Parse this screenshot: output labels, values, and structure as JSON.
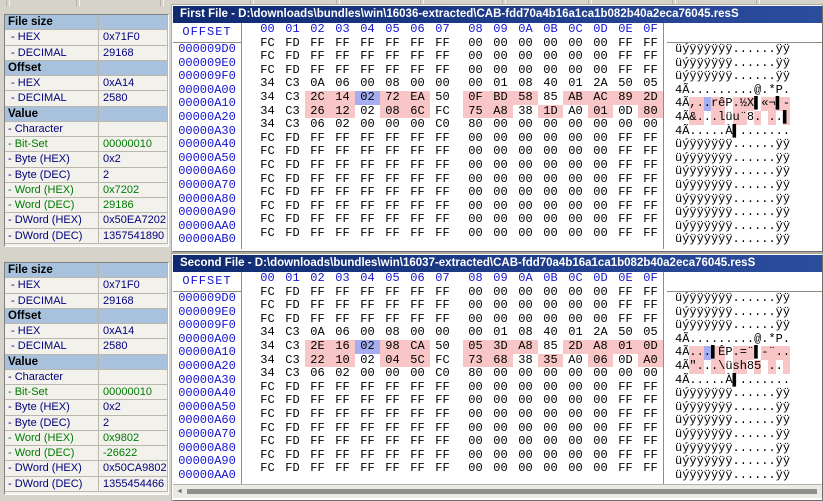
{
  "colors": {
    "navy": "#00007d",
    "green": "#007b00",
    "blue": "#1414d2",
    "diff_highlight": "#f8c6c6",
    "selection_highlight": "#a6aef2",
    "header_steel_blue": "#a8c2dd",
    "caption_dark": "#0f2a70",
    "caption_light": "#2c4d9e"
  },
  "left_panels": [
    {
      "name": "first-file-info",
      "rows": [
        {
          "h": "File size"
        },
        {
          "l": " - HEX",
          "v": "0x71F0",
          "c": "b"
        },
        {
          "l": " - DECIMAL",
          "v": "29168",
          "c": "b"
        },
        {
          "h": "Offset"
        },
        {
          "l": " - HEX",
          "v": "0xA14",
          "c": "b"
        },
        {
          "l": " - DECIMAL",
          "v": "2580",
          "c": "b"
        },
        {
          "h": "Value"
        },
        {
          "l": "- Character",
          "v": "",
          "c": "b"
        },
        {
          "l": "- Bit-Set",
          "v": "00000010",
          "c": "g"
        },
        {
          "l": "- Byte (HEX)",
          "v": "0x2",
          "c": "b"
        },
        {
          "l": "- Byte (DEC)",
          "v": "2",
          "c": "b"
        },
        {
          "l": "- Word (HEX)",
          "v": "0x7202",
          "c": "g"
        },
        {
          "l": "- Word (DEC)",
          "v": "29186",
          "c": "g"
        },
        {
          "l": "- DWord (HEX)",
          "v": "0x50EA7202",
          "c": "b"
        },
        {
          "l": "- DWord (DEC)",
          "v": "1357541890",
          "c": "b"
        }
      ]
    },
    {
      "name": "second-file-info",
      "rows": [
        {
          "h": "File size"
        },
        {
          "l": " - HEX",
          "v": "0x71F0",
          "c": "b"
        },
        {
          "l": " - DECIMAL",
          "v": "29168",
          "c": "b"
        },
        {
          "h": "Offset"
        },
        {
          "l": " - HEX",
          "v": "0xA14",
          "c": "b"
        },
        {
          "l": " - DECIMAL",
          "v": "2580",
          "c": "b"
        },
        {
          "h": "Value"
        },
        {
          "l": "- Character",
          "v": "",
          "c": "b"
        },
        {
          "l": "- Bit-Set",
          "v": "00000010",
          "c": "g"
        },
        {
          "l": "- Byte (HEX)",
          "v": "0x2",
          "c": "b"
        },
        {
          "l": "- Byte (DEC)",
          "v": "2",
          "c": "b"
        },
        {
          "l": "- Word (HEX)",
          "v": "0x9802",
          "c": "g"
        },
        {
          "l": "- Word (DEC)",
          "v": "-26622",
          "c": "g"
        },
        {
          "l": "- DWord (HEX)",
          "v": "0x50CA9802",
          "c": "b"
        },
        {
          "l": "- DWord (DEC)",
          "v": "1355454466",
          "c": "b"
        }
      ]
    }
  ],
  "hex_panes": [
    {
      "title": "First File - D:\\downloads\\bundles\\win\\16036-extracted\\CAB-fdd70a4b16a1ca1b082b40a2eca76045.resS",
      "offset_header": "OFFSET",
      "byte_headers": [
        "00",
        "01",
        "02",
        "03",
        "04",
        "05",
        "06",
        "07",
        "08",
        "09",
        "0A",
        "0B",
        "0C",
        "0D",
        "0E",
        "0F"
      ],
      "rows": [
        {
          "offset": "000009D0",
          "bytes": [
            "FC",
            "FD",
            "FF",
            "FF",
            "FF",
            "FF",
            "FF",
            "FF",
            "00",
            "00",
            "00",
            "00",
            "00",
            "00",
            "FF",
            "FF"
          ],
          "ascii": "üýÿÿÿÿÿÿ......ÿÿ",
          "hl": "................"
        },
        {
          "offset": "000009E0",
          "bytes": [
            "FC",
            "FD",
            "FF",
            "FF",
            "FF",
            "FF",
            "FF",
            "FF",
            "00",
            "00",
            "00",
            "00",
            "00",
            "00",
            "FF",
            "FF"
          ],
          "ascii": "üýÿÿÿÿÿÿ......ÿÿ",
          "hl": "................"
        },
        {
          "offset": "000009F0",
          "bytes": [
            "FC",
            "FD",
            "FF",
            "FF",
            "FF",
            "FF",
            "FF",
            "FF",
            "00",
            "00",
            "00",
            "00",
            "00",
            "00",
            "FF",
            "FF"
          ],
          "ascii": "üýÿÿÿÿÿÿ......ÿÿ",
          "hl": "................"
        },
        {
          "offset": "00000A00",
          "bytes": [
            "34",
            "C3",
            "0A",
            "06",
            "00",
            "08",
            "00",
            "00",
            "00",
            "01",
            "08",
            "40",
            "01",
            "2A",
            "50",
            "05"
          ],
          "ascii": "4Ã.........@.*P.",
          "hl": "................"
        },
        {
          "offset": "00000A10",
          "bytes": [
            "34",
            "C3",
            "2C",
            "14",
            "02",
            "72",
            "EA",
            "50",
            "0F",
            "BD",
            "58",
            "85",
            "AB",
            "AC",
            "89",
            "2D"
          ],
          "ascii": "4Ã,..rêP.½X▌«¬▌-",
          "hl": "..ddsdd.ddd.dddd"
        },
        {
          "offset": "00000A20",
          "bytes": [
            "34",
            "C3",
            "26",
            "12",
            "02",
            "08",
            "6C",
            "FC",
            "75",
            "A8",
            "38",
            "1D",
            "A0",
            "01",
            "0D",
            "80"
          ],
          "ascii": "4Ã&...lüu¨8. ..▌",
          "hl": "..dd.dd.dd.d.d.d"
        },
        {
          "offset": "00000A30",
          "bytes": [
            "34",
            "C3",
            "06",
            "02",
            "00",
            "00",
            "00",
            "C0",
            "80",
            "00",
            "00",
            "00",
            "00",
            "00",
            "00",
            "00"
          ],
          "ascii": "4Ã.....À▌.......",
          "hl": "................"
        },
        {
          "offset": "00000A40",
          "bytes": [
            "FC",
            "FD",
            "FF",
            "FF",
            "FF",
            "FF",
            "FF",
            "FF",
            "00",
            "00",
            "00",
            "00",
            "00",
            "00",
            "FF",
            "FF"
          ],
          "ascii": "üýÿÿÿÿÿÿ......ÿÿ",
          "hl": "................"
        },
        {
          "offset": "00000A50",
          "bytes": [
            "FC",
            "FD",
            "FF",
            "FF",
            "FF",
            "FF",
            "FF",
            "FF",
            "00",
            "00",
            "00",
            "00",
            "00",
            "00",
            "FF",
            "FF"
          ],
          "ascii": "üýÿÿÿÿÿÿ......ÿÿ",
          "hl": "................"
        },
        {
          "offset": "00000A60",
          "bytes": [
            "FC",
            "FD",
            "FF",
            "FF",
            "FF",
            "FF",
            "FF",
            "FF",
            "00",
            "00",
            "00",
            "00",
            "00",
            "00",
            "FF",
            "FF"
          ],
          "ascii": "üýÿÿÿÿÿÿ......ÿÿ",
          "hl": "................"
        },
        {
          "offset": "00000A70",
          "bytes": [
            "FC",
            "FD",
            "FF",
            "FF",
            "FF",
            "FF",
            "FF",
            "FF",
            "00",
            "00",
            "00",
            "00",
            "00",
            "00",
            "FF",
            "FF"
          ],
          "ascii": "üýÿÿÿÿÿÿ......ÿÿ",
          "hl": "................"
        },
        {
          "offset": "00000A80",
          "bytes": [
            "FC",
            "FD",
            "FF",
            "FF",
            "FF",
            "FF",
            "FF",
            "FF",
            "00",
            "00",
            "00",
            "00",
            "00",
            "00",
            "FF",
            "FF"
          ],
          "ascii": "üýÿÿÿÿÿÿ......ÿÿ",
          "hl": "................"
        },
        {
          "offset": "00000A90",
          "bytes": [
            "FC",
            "FD",
            "FF",
            "FF",
            "FF",
            "FF",
            "FF",
            "FF",
            "00",
            "00",
            "00",
            "00",
            "00",
            "00",
            "FF",
            "FF"
          ],
          "ascii": "üýÿÿÿÿÿÿ......ÿÿ",
          "hl": "................"
        },
        {
          "offset": "00000AA0",
          "bytes": [
            "FC",
            "FD",
            "FF",
            "FF",
            "FF",
            "FF",
            "FF",
            "FF",
            "00",
            "00",
            "00",
            "00",
            "00",
            "00",
            "FF",
            "FF"
          ],
          "ascii": "üýÿÿÿÿÿÿ......ÿÿ",
          "hl": "................"
        },
        {
          "offset": "00000AB0",
          "bytes": [
            "FC",
            "FD",
            "FF",
            "FF",
            "FF",
            "FF",
            "FF",
            "FF",
            "00",
            "00",
            "00",
            "00",
            "00",
            "00",
            "FF",
            "FF"
          ],
          "ascii": "üýÿÿÿÿÿÿ......ÿÿ",
          "hl": "................"
        }
      ],
      "has_hscrollbar": false
    },
    {
      "title": "Second File - D:\\downloads\\bundles\\win\\16037-extracted\\CAB-fdd70a4b16a1ca1b082b40a2eca76045.resS",
      "offset_header": "OFFSET",
      "byte_headers": [
        "00",
        "01",
        "02",
        "03",
        "04",
        "05",
        "06",
        "07",
        "08",
        "09",
        "0A",
        "0B",
        "0C",
        "0D",
        "0E",
        "0F"
      ],
      "rows": [
        {
          "offset": "000009D0",
          "bytes": [
            "FC",
            "FD",
            "FF",
            "FF",
            "FF",
            "FF",
            "FF",
            "FF",
            "00",
            "00",
            "00",
            "00",
            "00",
            "00",
            "FF",
            "FF"
          ],
          "ascii": "üýÿÿÿÿÿÿ......ÿÿ",
          "hl": "................"
        },
        {
          "offset": "000009E0",
          "bytes": [
            "FC",
            "FD",
            "FF",
            "FF",
            "FF",
            "FF",
            "FF",
            "FF",
            "00",
            "00",
            "00",
            "00",
            "00",
            "00",
            "FF",
            "FF"
          ],
          "ascii": "üýÿÿÿÿÿÿ......ÿÿ",
          "hl": "................"
        },
        {
          "offset": "000009F0",
          "bytes": [
            "FC",
            "FD",
            "FF",
            "FF",
            "FF",
            "FF",
            "FF",
            "FF",
            "00",
            "00",
            "00",
            "00",
            "00",
            "00",
            "FF",
            "FF"
          ],
          "ascii": "üýÿÿÿÿÿÿ......ÿÿ",
          "hl": "................"
        },
        {
          "offset": "00000A00",
          "bytes": [
            "34",
            "C3",
            "0A",
            "06",
            "00",
            "08",
            "00",
            "00",
            "00",
            "01",
            "08",
            "40",
            "01",
            "2A",
            "50",
            "05"
          ],
          "ascii": "4Ã.........@.*P.",
          "hl": "................"
        },
        {
          "offset": "00000A10",
          "bytes": [
            "34",
            "C3",
            "2E",
            "16",
            "02",
            "98",
            "CA",
            "50",
            "05",
            "3D",
            "A8",
            "85",
            "2D",
            "A8",
            "01",
            "0D"
          ],
          "ascii": "4Ã...▌ÊP.=¨▌-¨..",
          "hl": "..ddsdd.ddd.dddd"
        },
        {
          "offset": "00000A20",
          "bytes": [
            "34",
            "C3",
            "22",
            "10",
            "02",
            "04",
            "5C",
            "FC",
            "73",
            "68",
            "38",
            "35",
            "A0",
            "06",
            "0D",
            "A0"
          ],
          "ascii": "4Ã\"...\\üsh85 .. ",
          "hl": "..dd.dd.dd.d.d.d"
        },
        {
          "offset": "00000A30",
          "bytes": [
            "34",
            "C3",
            "06",
            "02",
            "00",
            "00",
            "00",
            "C0",
            "80",
            "00",
            "00",
            "00",
            "00",
            "00",
            "00",
            "00"
          ],
          "ascii": "4Ã.....À▌.......",
          "hl": "................"
        },
        {
          "offset": "00000A40",
          "bytes": [
            "FC",
            "FD",
            "FF",
            "FF",
            "FF",
            "FF",
            "FF",
            "FF",
            "00",
            "00",
            "00",
            "00",
            "00",
            "00",
            "FF",
            "FF"
          ],
          "ascii": "üýÿÿÿÿÿÿ......ÿÿ",
          "hl": "................"
        },
        {
          "offset": "00000A50",
          "bytes": [
            "FC",
            "FD",
            "FF",
            "FF",
            "FF",
            "FF",
            "FF",
            "FF",
            "00",
            "00",
            "00",
            "00",
            "00",
            "00",
            "FF",
            "FF"
          ],
          "ascii": "üýÿÿÿÿÿÿ......ÿÿ",
          "hl": "................"
        },
        {
          "offset": "00000A60",
          "bytes": [
            "FC",
            "FD",
            "FF",
            "FF",
            "FF",
            "FF",
            "FF",
            "FF",
            "00",
            "00",
            "00",
            "00",
            "00",
            "00",
            "FF",
            "FF"
          ],
          "ascii": "üýÿÿÿÿÿÿ......ÿÿ",
          "hl": "................"
        },
        {
          "offset": "00000A70",
          "bytes": [
            "FC",
            "FD",
            "FF",
            "FF",
            "FF",
            "FF",
            "FF",
            "FF",
            "00",
            "00",
            "00",
            "00",
            "00",
            "00",
            "FF",
            "FF"
          ],
          "ascii": "üýÿÿÿÿÿÿ......ÿÿ",
          "hl": "................"
        },
        {
          "offset": "00000A80",
          "bytes": [
            "FC",
            "FD",
            "FF",
            "FF",
            "FF",
            "FF",
            "FF",
            "FF",
            "00",
            "00",
            "00",
            "00",
            "00",
            "00",
            "FF",
            "FF"
          ],
          "ascii": "üýÿÿÿÿÿÿ......ÿÿ",
          "hl": "................"
        },
        {
          "offset": "00000A90",
          "bytes": [
            "FC",
            "FD",
            "FF",
            "FF",
            "FF",
            "FF",
            "FF",
            "FF",
            "00",
            "00",
            "00",
            "00",
            "00",
            "00",
            "FF",
            "FF"
          ],
          "ascii": "üýÿÿÿÿÿÿ......ÿÿ",
          "hl": "................"
        },
        {
          "offset": "00000AA0",
          "bytes": [
            "FC",
            "FD",
            "FF",
            "FF",
            "FF",
            "FF",
            "FF",
            "FF",
            "00",
            "00",
            "00",
            "00",
            "00",
            "00",
            "FF",
            "FF"
          ],
          "ascii": "üýÿÿÿÿÿÿ......ÿÿ",
          "hl": "................"
        }
      ],
      "has_hscrollbar": true
    }
  ]
}
